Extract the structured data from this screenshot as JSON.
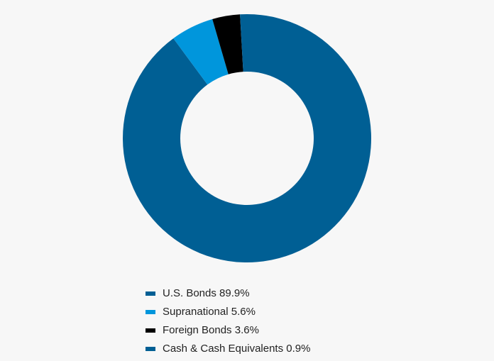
{
  "chart_data": {
    "type": "pie",
    "categories": [
      "U.S. Bonds",
      "Supranational",
      "Foreign Bonds",
      "Cash & Cash Equivalents"
    ],
    "values": [
      89.9,
      5.6,
      3.6,
      0.9
    ],
    "value_labels": [
      "89.9%",
      "5.6%",
      "3.6%",
      "0.9%"
    ],
    "colors": [
      "#005f94",
      "#0096dc",
      "#000000",
      "#005f94"
    ]
  }
}
